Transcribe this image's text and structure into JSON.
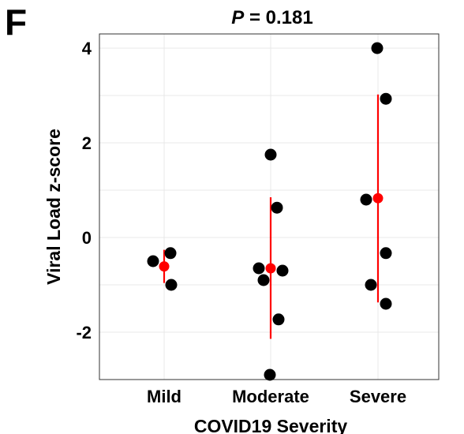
{
  "panel_label": "F",
  "title_italic": "P",
  "title_rest": " = 0.181",
  "colors": {
    "point": "#000000",
    "summary": "#ff0000",
    "grid": "#e8e8e8",
    "frame": "#333333"
  },
  "chart_data": {
    "type": "scatter",
    "title": "P = 0.181",
    "xlabel": "COVID19 Severity",
    "ylabel": "Viral Load z-score",
    "categories": [
      "Mild",
      "Moderate",
      "Severe"
    ],
    "ylim": [
      -3.0,
      4.3
    ],
    "yticks": [
      -2,
      0,
      2,
      4
    ],
    "ytick_labels": [
      "-2",
      "0",
      "2",
      "4"
    ],
    "grid": true,
    "points": [
      {
        "category": "Mild",
        "y": -0.5
      },
      {
        "category": "Mild",
        "y": -0.33
      },
      {
        "category": "Mild",
        "y": -1.0
      },
      {
        "category": "Moderate",
        "y": 1.75
      },
      {
        "category": "Moderate",
        "y": 0.63
      },
      {
        "category": "Moderate",
        "y": -0.65
      },
      {
        "category": "Moderate",
        "y": -0.7
      },
      {
        "category": "Moderate",
        "y": -0.9
      },
      {
        "category": "Moderate",
        "y": -1.73
      },
      {
        "category": "Moderate",
        "y": -2.9
      },
      {
        "category": "Severe",
        "y": 4.0
      },
      {
        "category": "Severe",
        "y": 2.93
      },
      {
        "category": "Severe",
        "y": 0.8
      },
      {
        "category": "Severe",
        "y": -0.33
      },
      {
        "category": "Severe",
        "y": -1.0
      },
      {
        "category": "Severe",
        "y": -1.4
      }
    ],
    "summary": [
      {
        "category": "Mild",
        "mean": -0.61,
        "low": -0.96,
        "high": -0.26
      },
      {
        "category": "Moderate",
        "mean": -0.65,
        "low": -2.14,
        "high": 0.85
      },
      {
        "category": "Severe",
        "mean": 0.83,
        "low": -1.37,
        "high": 3.02
      }
    ]
  }
}
